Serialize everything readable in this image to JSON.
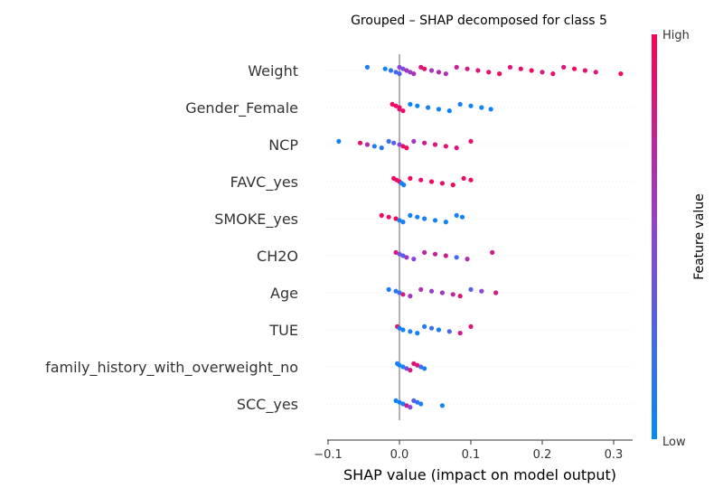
{
  "chart_data": {
    "type": "scatter",
    "subtype": "shap-beeswarm",
    "title": "Grouped – SHAP decomposed for class 5",
    "xlabel": "SHAP value (impact on model output)",
    "xlim": [
      -0.1,
      0.33
    ],
    "xticks": [
      -0.1,
      0.0,
      0.1,
      0.2,
      0.3
    ],
    "xtick_labels": [
      "−0.1",
      "0.0",
      "0.1",
      "0.2",
      "0.3"
    ],
    "grid": false,
    "colorbar": {
      "label": "Feature value",
      "high_label": "High",
      "low_label": "Low",
      "low_color": "#008bfb",
      "high_color": "#ff0051"
    },
    "features": [
      {
        "name": "Weight",
        "points": [
          {
            "x": -0.045,
            "v": 0.1
          },
          {
            "x": -0.02,
            "v": 0.05
          },
          {
            "x": -0.012,
            "v": 0.15
          },
          {
            "x": -0.005,
            "v": 0.2
          },
          {
            "x": 0.0,
            "v": 0.3
          },
          {
            "x": 0.0,
            "v": 0.5
          },
          {
            "x": 0.005,
            "v": 0.45
          },
          {
            "x": 0.01,
            "v": 0.6
          },
          {
            "x": 0.015,
            "v": 0.55
          },
          {
            "x": 0.02,
            "v": 0.65
          },
          {
            "x": 0.03,
            "v": 0.85
          },
          {
            "x": 0.035,
            "v": 0.9
          },
          {
            "x": 0.045,
            "v": 0.6
          },
          {
            "x": 0.055,
            "v": 0.7
          },
          {
            "x": 0.065,
            "v": 0.65
          },
          {
            "x": 0.08,
            "v": 0.75
          },
          {
            "x": 0.095,
            "v": 0.8
          },
          {
            "x": 0.11,
            "v": 0.85
          },
          {
            "x": 0.125,
            "v": 0.9
          },
          {
            "x": 0.14,
            "v": 0.95
          },
          {
            "x": 0.155,
            "v": 0.85
          },
          {
            "x": 0.17,
            "v": 0.9
          },
          {
            "x": 0.185,
            "v": 0.95
          },
          {
            "x": 0.2,
            "v": 0.8
          },
          {
            "x": 0.215,
            "v": 0.9
          },
          {
            "x": 0.23,
            "v": 0.85
          },
          {
            "x": 0.245,
            "v": 0.95
          },
          {
            "x": 0.26,
            "v": 0.9
          },
          {
            "x": 0.275,
            "v": 0.85
          },
          {
            "x": 0.31,
            "v": 0.95
          }
        ]
      },
      {
        "name": "Gender_Female",
        "points": [
          {
            "x": -0.01,
            "v": 0.95
          },
          {
            "x": -0.005,
            "v": 0.9
          },
          {
            "x": 0.0,
            "v": 0.95
          },
          {
            "x": 0.0,
            "v": 0.9
          },
          {
            "x": 0.005,
            "v": 0.9
          },
          {
            "x": 0.015,
            "v": 0.05
          },
          {
            "x": 0.025,
            "v": 0.05
          },
          {
            "x": 0.04,
            "v": 0.1
          },
          {
            "x": 0.055,
            "v": 0.05
          },
          {
            "x": 0.07,
            "v": 0.05
          },
          {
            "x": 0.085,
            "v": 0.1
          },
          {
            "x": 0.1,
            "v": 0.05
          },
          {
            "x": 0.115,
            "v": 0.05
          },
          {
            "x": 0.128,
            "v": 0.05
          }
        ]
      },
      {
        "name": "NCP",
        "points": [
          {
            "x": -0.085,
            "v": 0.05
          },
          {
            "x": -0.055,
            "v": 0.9
          },
          {
            "x": -0.045,
            "v": 0.7
          },
          {
            "x": -0.035,
            "v": 0.1
          },
          {
            "x": -0.025,
            "v": 0.15
          },
          {
            "x": -0.015,
            "v": 0.2
          },
          {
            "x": -0.008,
            "v": 0.3
          },
          {
            "x": 0.0,
            "v": 0.5
          },
          {
            "x": 0.005,
            "v": 0.9
          },
          {
            "x": 0.01,
            "v": 0.95
          },
          {
            "x": 0.02,
            "v": 0.6
          },
          {
            "x": 0.035,
            "v": 0.8
          },
          {
            "x": 0.05,
            "v": 0.85
          },
          {
            "x": 0.065,
            "v": 0.9
          },
          {
            "x": 0.08,
            "v": 0.85
          },
          {
            "x": 0.1,
            "v": 0.9
          }
        ]
      },
      {
        "name": "FAVC_yes",
        "points": [
          {
            "x": -0.008,
            "v": 0.95
          },
          {
            "x": -0.004,
            "v": 0.9
          },
          {
            "x": 0.0,
            "v": 0.95
          },
          {
            "x": 0.003,
            "v": 0.05
          },
          {
            "x": 0.006,
            "v": 0.1
          },
          {
            "x": 0.015,
            "v": 0.95
          },
          {
            "x": 0.03,
            "v": 0.9
          },
          {
            "x": 0.045,
            "v": 0.95
          },
          {
            "x": 0.06,
            "v": 0.9
          },
          {
            "x": 0.075,
            "v": 0.95
          },
          {
            "x": 0.09,
            "v": 0.9
          },
          {
            "x": 0.1,
            "v": 0.95
          }
        ]
      },
      {
        "name": "SMOKE_yes",
        "points": [
          {
            "x": -0.025,
            "v": 0.95
          },
          {
            "x": -0.015,
            "v": 0.9
          },
          {
            "x": -0.005,
            "v": 0.95
          },
          {
            "x": 0.0,
            "v": 0.05
          },
          {
            "x": 0.005,
            "v": 0.1
          },
          {
            "x": 0.015,
            "v": 0.05
          },
          {
            "x": 0.025,
            "v": 0.05
          },
          {
            "x": 0.035,
            "v": 0.1
          },
          {
            "x": 0.05,
            "v": 0.05
          },
          {
            "x": 0.065,
            "v": 0.05
          },
          {
            "x": 0.08,
            "v": 0.1
          },
          {
            "x": 0.088,
            "v": 0.05
          }
        ]
      },
      {
        "name": "CH2O",
        "points": [
          {
            "x": -0.005,
            "v": 0.85
          },
          {
            "x": 0.0,
            "v": 0.4
          },
          {
            "x": 0.005,
            "v": 0.3
          },
          {
            "x": 0.01,
            "v": 0.6
          },
          {
            "x": 0.02,
            "v": 0.5
          },
          {
            "x": 0.035,
            "v": 0.7
          },
          {
            "x": 0.05,
            "v": 0.75
          },
          {
            "x": 0.065,
            "v": 0.8
          },
          {
            "x": 0.08,
            "v": 0.2
          },
          {
            "x": 0.095,
            "v": 0.65
          },
          {
            "x": 0.13,
            "v": 0.8
          }
        ]
      },
      {
        "name": "Age",
        "points": [
          {
            "x": -0.015,
            "v": 0.1
          },
          {
            "x": -0.005,
            "v": 0.15
          },
          {
            "x": 0.0,
            "v": 0.2
          },
          {
            "x": 0.005,
            "v": 0.8
          },
          {
            "x": 0.015,
            "v": 0.6
          },
          {
            "x": 0.03,
            "v": 0.65
          },
          {
            "x": 0.045,
            "v": 0.55
          },
          {
            "x": 0.06,
            "v": 0.6
          },
          {
            "x": 0.075,
            "v": 0.7
          },
          {
            "x": 0.085,
            "v": 0.85
          },
          {
            "x": 0.1,
            "v": 0.3
          },
          {
            "x": 0.115,
            "v": 0.5
          },
          {
            "x": 0.135,
            "v": 0.8
          }
        ]
      },
      {
        "name": "TUE",
        "points": [
          {
            "x": -0.003,
            "v": 0.85
          },
          {
            "x": 0.0,
            "v": 0.1
          },
          {
            "x": 0.005,
            "v": 0.05
          },
          {
            "x": 0.015,
            "v": 0.1
          },
          {
            "x": 0.025,
            "v": 0.05
          },
          {
            "x": 0.035,
            "v": 0.1
          },
          {
            "x": 0.045,
            "v": 0.2
          },
          {
            "x": 0.055,
            "v": 0.1
          },
          {
            "x": 0.07,
            "v": 0.3
          },
          {
            "x": 0.085,
            "v": 0.8
          },
          {
            "x": 0.1,
            "v": 0.85
          }
        ]
      },
      {
        "name": "family_history_with_overweight_no",
        "points": [
          {
            "x": -0.003,
            "v": 0.1
          },
          {
            "x": 0.0,
            "v": 0.05
          },
          {
            "x": 0.005,
            "v": 0.1
          },
          {
            "x": 0.01,
            "v": 0.4
          },
          {
            "x": 0.015,
            "v": 0.8
          },
          {
            "x": 0.02,
            "v": 0.85
          },
          {
            "x": 0.025,
            "v": 0.9
          },
          {
            "x": 0.03,
            "v": 0.2
          },
          {
            "x": 0.035,
            "v": 0.1
          }
        ]
      },
      {
        "name": "SCC_yes",
        "points": [
          {
            "x": -0.005,
            "v": 0.05
          },
          {
            "x": 0.0,
            "v": 0.1
          },
          {
            "x": 0.005,
            "v": 0.05
          },
          {
            "x": 0.01,
            "v": 0.8
          },
          {
            "x": 0.015,
            "v": 0.5
          },
          {
            "x": 0.02,
            "v": 0.3
          },
          {
            "x": 0.025,
            "v": 0.2
          },
          {
            "x": 0.03,
            "v": 0.1
          },
          {
            "x": 0.06,
            "v": 0.05
          }
        ]
      }
    ]
  }
}
